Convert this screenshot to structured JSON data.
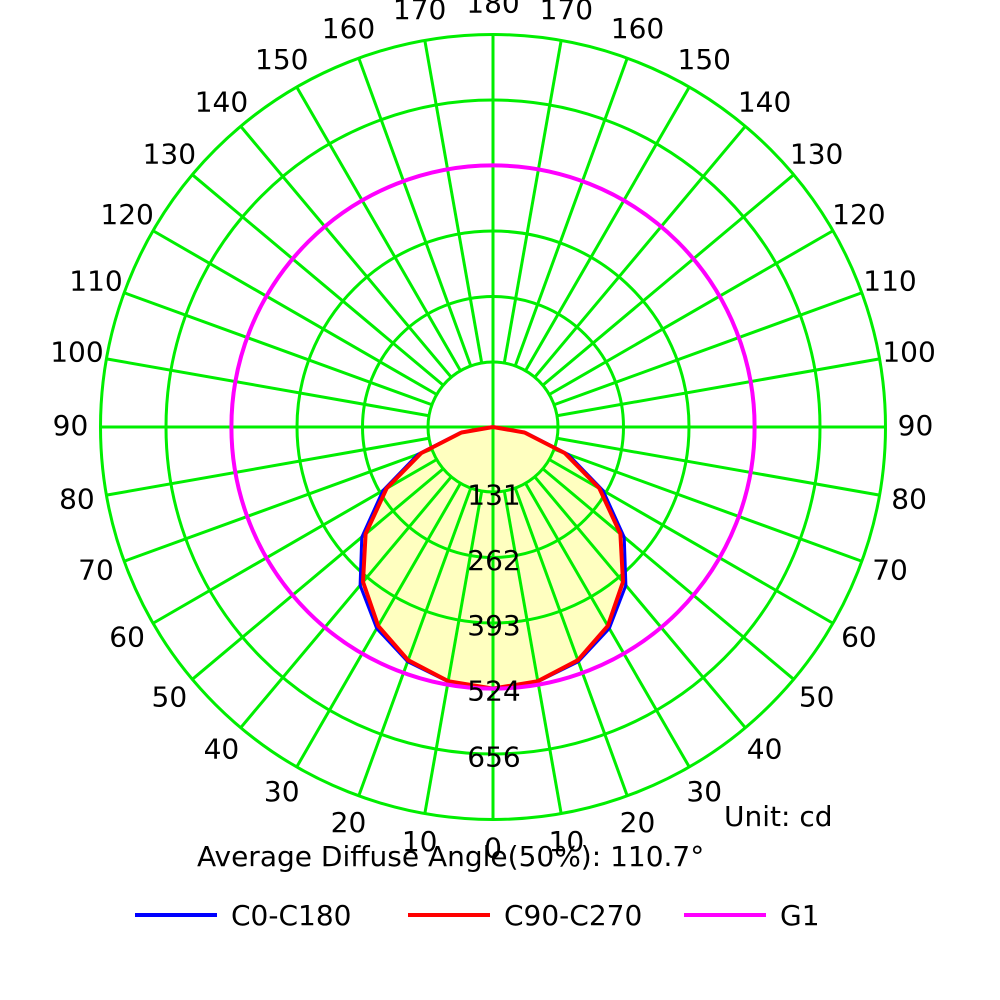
{
  "chart_data": {
    "type": "polar",
    "unit_text": "Unit: cd",
    "summary_text": "Average Diffuse Angle(50%): 110.7°",
    "radial_ticks": [
      "131",
      "262",
      "393",
      "524",
      "656"
    ],
    "radial_values": [
      131,
      262,
      393,
      524,
      656
    ],
    "angle_labels_left": [
      "0",
      "10",
      "20",
      "30",
      "40",
      "50",
      "60",
      "70",
      "80",
      "90",
      "100",
      "110",
      "120",
      "130",
      "140",
      "150",
      "160",
      "170"
    ],
    "angle_labels_right": [
      "10",
      "20",
      "30",
      "40",
      "50",
      "60",
      "70",
      "80",
      "90",
      "100",
      "110",
      "120",
      "130",
      "140",
      "150",
      "160",
      "170"
    ],
    "angle_label_top": "180",
    "series": [
      {
        "name": "C0-C180",
        "color": "#0000ff",
        "angles": [
          0,
          10,
          20,
          30,
          40,
          50,
          60,
          70,
          80,
          90
        ],
        "values": [
          524,
          518,
          500,
          466,
          414,
          343,
          255,
          160,
          68,
          0
        ]
      },
      {
        "name": "C90-C270",
        "color": "#ff0000",
        "angles": [
          0,
          10,
          20,
          30,
          40,
          50,
          60,
          70,
          80,
          90
        ],
        "values": [
          524,
          517,
          497,
          460,
          405,
          333,
          246,
          153,
          64,
          0
        ]
      },
      {
        "name": "G1",
        "color": "#ff00ff",
        "angles": [
          0,
          30,
          60,
          90,
          120,
          150,
          180
        ],
        "values": [
          524,
          524,
          524,
          524,
          524,
          524,
          524
        ]
      }
    ]
  },
  "colors": {
    "grid": "#00ee00",
    "fill": "#ffffc0"
  }
}
